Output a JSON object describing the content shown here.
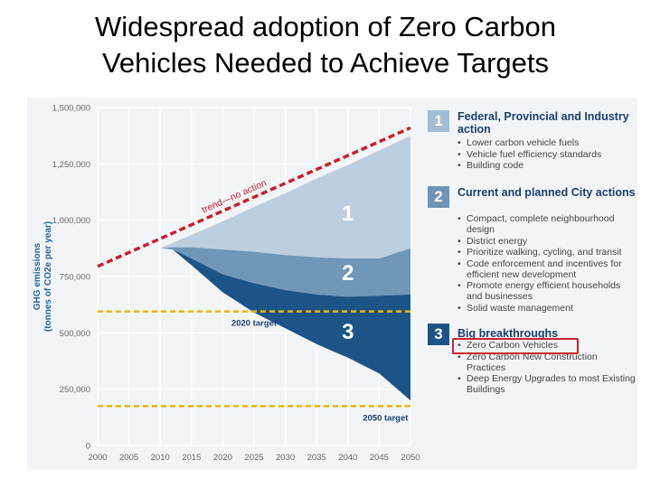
{
  "slide_title": {
    "line1": "Widespread adoption of Zero Carbon",
    "line2": "Vehicles Needed to Achieve Targets"
  },
  "chart_data": {
    "type": "area",
    "title": "Widespread adoption of Zero Carbon Vehicles Needed to Achieve Targets",
    "xlabel": "",
    "ylabel_line1": "GHG emissions",
    "ylabel_line2": "(tonnes of CO2e per year)",
    "xlim": [
      2000,
      2050
    ],
    "ylim": [
      0,
      1500000
    ],
    "x_ticks": [
      2000,
      2005,
      2010,
      2015,
      2020,
      2025,
      2030,
      2035,
      2040,
      2045,
      2050
    ],
    "x_tick_labels": [
      "2000",
      "2005",
      "2010",
      "2015",
      "2020",
      "2025",
      "2030",
      "2035",
      "2040",
      "2045",
      "2050"
    ],
    "y_ticks": [
      0,
      250000,
      500000,
      750000,
      1000000,
      1250000,
      1500000
    ],
    "y_tick_labels": [
      "0",
      "250,000",
      "500,000",
      "750,000",
      "1,000,000",
      "1,250,000",
      "1,500,000"
    ],
    "trend_line": {
      "label": "trend—no action",
      "x": [
        2000,
        2050
      ],
      "y": [
        795000,
        1410000
      ],
      "color": "#c8202f"
    },
    "targets": [
      {
        "label": "2020 target",
        "value": 595000,
        "label_year": 2025,
        "color": "#f0b400"
      },
      {
        "label": "2050 target",
        "value": 175000,
        "label_year": 2046,
        "color": "#f0b400"
      }
    ],
    "series": [
      {
        "name": "1",
        "label": "1",
        "color": "#bccfe0",
        "x": [
          2010,
          2012,
          2015,
          2020,
          2025,
          2030,
          2035,
          2040,
          2045,
          2050
        ],
        "upper": [
          875000,
          900000,
          935000,
          995000,
          1060000,
          1120000,
          1185000,
          1245000,
          1310000,
          1375000
        ],
        "lower": [
          875000,
          880000,
          880000,
          870000,
          860000,
          845000,
          835000,
          830000,
          830000,
          875000
        ]
      },
      {
        "name": "2",
        "label": "2",
        "color": "#7096b8",
        "x": [
          2010,
          2012,
          2015,
          2020,
          2025,
          2030,
          2035,
          2040,
          2045,
          2050
        ],
        "upper": [
          875000,
          880000,
          880000,
          870000,
          860000,
          845000,
          835000,
          830000,
          830000,
          875000
        ],
        "lower": [
          875000,
          870000,
          830000,
          760000,
          720000,
          690000,
          670000,
          660000,
          665000,
          670000
        ]
      },
      {
        "name": "3",
        "label": "3",
        "color": "#1d5487",
        "x": [
          2012,
          2015,
          2020,
          2025,
          2030,
          2035,
          2040,
          2045,
          2050
        ],
        "upper": [
          870000,
          830000,
          760000,
          720000,
          690000,
          670000,
          660000,
          665000,
          670000
        ],
        "lower": [
          870000,
          800000,
          680000,
          590000,
          520000,
          450000,
          390000,
          320000,
          200000
        ]
      }
    ],
    "area_labels": [
      {
        "text": "1",
        "x": 2040,
        "y": 1035000
      },
      {
        "text": "2",
        "x": 2040,
        "y": 770000
      },
      {
        "text": "3",
        "x": 2040,
        "y": 510000
      }
    ]
  },
  "legend": {
    "items": [
      {
        "number": "1",
        "color": "#a3bdd4",
        "title": "Federal, Provincial and Industry action",
        "bullets": [
          "Lower carbon vehicle fuels",
          "Vehicle fuel efficiency standards",
          "Building code"
        ]
      },
      {
        "number": "2",
        "color": "#6f94b6",
        "title": "Current and planned City actions",
        "bullets": [
          "Compact, complete neighbourhood design",
          "District energy",
          "Prioritize walking, cycling, and transit",
          "Code enforcement and incentives for efficient new development",
          "Promote energy efficient households and businesses",
          "Solid waste management"
        ]
      },
      {
        "number": "3",
        "color": "#1d5487",
        "title": "Big breakthroughs",
        "bullets": [
          "Zero Carbon Vehicles",
          "Zero Carbon New Construction Practices",
          "Deep Energy Upgrades to most Existing Buildings"
        ]
      }
    ]
  },
  "colors": {
    "title_text": "#1a3f6c",
    "axis_text": "#666666",
    "highlight": "#d11f2f"
  }
}
